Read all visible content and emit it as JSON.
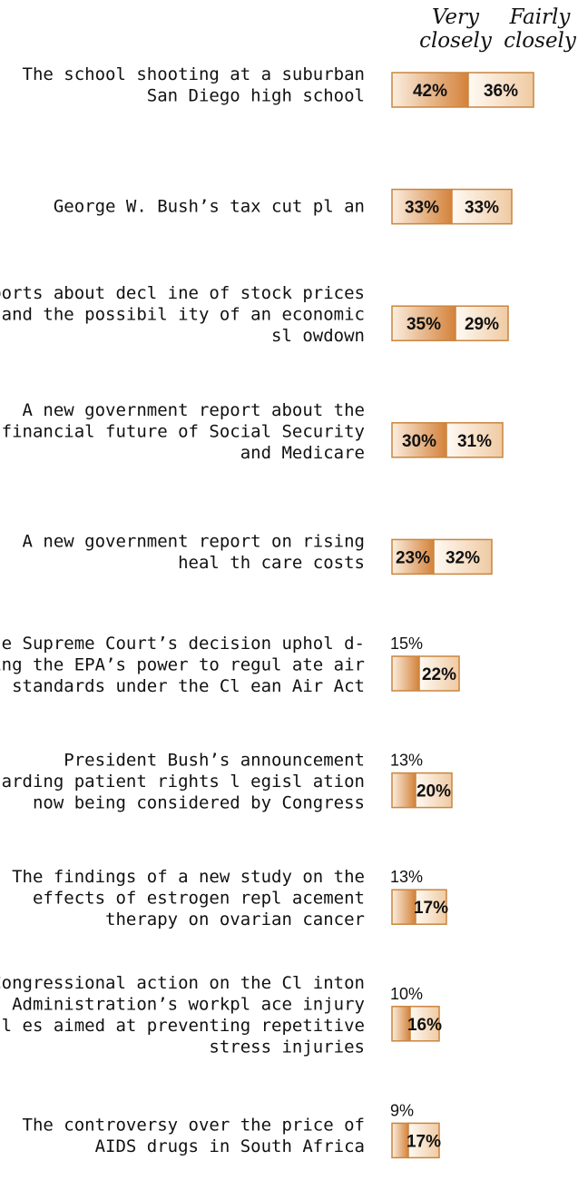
{
  "chart_data": {
    "type": "bar",
    "orientation": "horizontal",
    "stacked": true,
    "series": [
      {
        "name": "Very closely",
        "legend_lines": [
          "Very",
          "closely"
        ],
        "color": "#d8893a",
        "values": [
          42,
          33,
          35,
          30,
          23,
          15,
          13,
          13,
          10,
          9
        ]
      },
      {
        "name": "Fairly closely",
        "legend_lines": [
          "Fairly",
          "closely"
        ],
        "color": "#f6dcc0",
        "values": [
          36,
          33,
          29,
          31,
          32,
          22,
          20,
          17,
          16,
          17
        ]
      }
    ],
    "categories": [
      {
        "lines": [
          "The school shooting at a suburban",
          "San Diego high school"
        ]
      },
      {
        "lines": [
          "George W. Bush’s tax cut pl an"
        ]
      },
      {
        "lines": [
          "Reports about decl ine of stock prices",
          "and the possibil ity of an economic",
          "sl owdown"
        ]
      },
      {
        "lines": [
          "A new government report about the",
          "financial future of Social Security",
          "and Medicare"
        ]
      },
      {
        "lines": [
          "A new government report on rising",
          "heal th care costs"
        ]
      },
      {
        "lines": [
          "The Supreme Court’s decision uphol d-",
          "ing the EPA’s power to regul ate air",
          "standards under the Cl ean Air Act"
        ]
      },
      {
        "lines": [
          "President Bush’s announcement",
          "regarding patient rights l egisl ation",
          "now being considered by Congress"
        ]
      },
      {
        "lines": [
          "The findings of a new study on the",
          "effects of estrogen repl acement",
          "therapy on ovarian cancer"
        ]
      },
      {
        "lines": [
          "Congressional action on the Cl inton",
          "Administration’s workpl ace injury",
          "rul es aimed at preventing repetitive",
          "stress injuries"
        ]
      },
      {
        "lines": [
          "The controversy over the price of",
          "AIDS drugs in South Africa"
        ]
      }
    ],
    "value_suffix": "%",
    "legend_placement": "top-right",
    "grid": false
  }
}
